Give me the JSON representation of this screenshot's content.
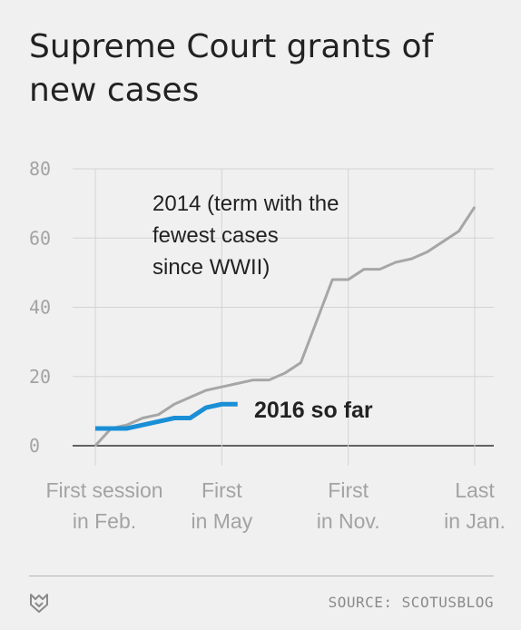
{
  "title": "Supreme Court grants of new cases",
  "source": "SOURCE: SCOTUSBLOG",
  "colors": {
    "background": "#f0f0f0",
    "series_2014": "#a6a6a6",
    "series_2016": "#1a8fd6",
    "grid": "#d4d4d4",
    "text": "#222222",
    "axis_text": "#a3a3a3"
  },
  "chart_data": {
    "type": "line",
    "title": "Supreme Court grants of new cases",
    "ylim": [
      0,
      80
    ],
    "yticks": [
      "0",
      "20",
      "40",
      "60",
      "80"
    ],
    "xlim": [
      0,
      12
    ],
    "xticks": [
      {
        "x": 0,
        "line1": "First session",
        "line2": "in Feb."
      },
      {
        "x": 4,
        "line1": "First",
        "line2": "in May"
      },
      {
        "x": 8,
        "line1": "First",
        "line2": "in Nov."
      },
      {
        "x": 12,
        "line1": "Last",
        "line2": "in Jan."
      }
    ],
    "grid": true,
    "series": [
      {
        "name": "2014 (term with the fewest cases since WWII)",
        "label_lines": [
          "2014 (term with the",
          "fewest cases",
          "since WWII)"
        ],
        "x": [
          0,
          0.5,
          1,
          1.5,
          2,
          2.5,
          3,
          3.5,
          4,
          4.5,
          5,
          5.5,
          6,
          6.5,
          7,
          7.5,
          8,
          8.5,
          9,
          9.5,
          10,
          10.5,
          11,
          11.5,
          12
        ],
        "y": [
          0,
          5,
          6,
          8,
          9,
          12,
          14,
          16,
          17,
          18,
          19,
          19,
          21,
          24,
          36,
          48,
          48,
          51,
          51,
          53,
          54,
          56,
          59,
          62,
          69
        ]
      },
      {
        "name": "2016 so far",
        "label_lines": [
          "2016 so far"
        ],
        "x": [
          0,
          1,
          2,
          2.5,
          3,
          3.5,
          4,
          4.5
        ],
        "y": [
          5,
          5,
          7,
          8,
          8,
          11,
          12,
          12
        ]
      }
    ]
  }
}
